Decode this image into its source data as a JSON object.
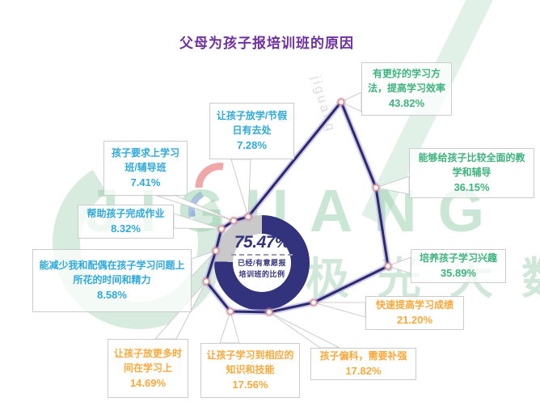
{
  "title": {
    "text": "父母为孩子报培训班的原因"
  },
  "center": {
    "value": "75.47%",
    "caption_line1": "已经/有意愿报",
    "caption_line2": "培训班的比例"
  },
  "watermark": {
    "brand": "JIGUANG",
    "brand_cn": "极 光 大 数 据",
    "diagonal_text": "jiguang"
  },
  "chart_data": {
    "type": "radar",
    "title": "父母为孩子报培训班的原因",
    "grid": false,
    "legend_position": "none",
    "center_metric": {
      "label": "已经/有意愿报培训班的比例",
      "value_pct": 75.47,
      "value_text": "75.47%"
    },
    "items": [
      {
        "label": "让孩子放学/节假日有去处",
        "value_pct": 7.28,
        "value_text": "7.28%",
        "color_group": "blue"
      },
      {
        "label": "有更好的学习方法，提高学习效率",
        "value_pct": 43.82,
        "value_text": "43.82%",
        "color_group": "green"
      },
      {
        "label": "能够给孩子比较全面的教学和辅导",
        "value_pct": 36.15,
        "value_text": "36.15%",
        "color_group": "green"
      },
      {
        "label": "培养孩子学习兴趣",
        "value_pct": 35.89,
        "value_text": "35.89%",
        "color_group": "green"
      },
      {
        "label": "快速提高学习成绩",
        "value_pct": 21.2,
        "value_text": "21.20%",
        "color_group": "orange"
      },
      {
        "label": "孩子偏科，需要补强",
        "value_pct": 17.82,
        "value_text": "17.82%",
        "color_group": "orange"
      },
      {
        "label": "让孩子学习到相应的知识和技能",
        "value_pct": 17.56,
        "value_text": "17.56%",
        "color_group": "orange"
      },
      {
        "label": "让孩子放更多时间在学习上",
        "value_pct": 14.69,
        "value_text": "14.69%",
        "color_group": "orange"
      },
      {
        "label": "能减少我和配偶在孩子学习问题上所花的时间和精力",
        "value_pct": 8.58,
        "value_text": "8.58%",
        "color_group": "blue"
      },
      {
        "label": "帮助孩子完成作业",
        "value_pct": 8.32,
        "value_text": "8.32%",
        "color_group": "blue"
      },
      {
        "label": "孩子要求上学习班/辅导班",
        "value_pct": 7.41,
        "value_text": "7.41%",
        "color_group": "blue"
      }
    ],
    "colors": {
      "green": "#3eb37e",
      "orange": "#f9a93c",
      "blue": "#2ea9da",
      "ring": "#32327d",
      "ring_rest": "#c9c9c9",
      "polygon": "#2a2a6e",
      "polygon_glow": "#b7abdf",
      "marker_ring": "#e2908e",
      "title": "#7030a0"
    }
  }
}
